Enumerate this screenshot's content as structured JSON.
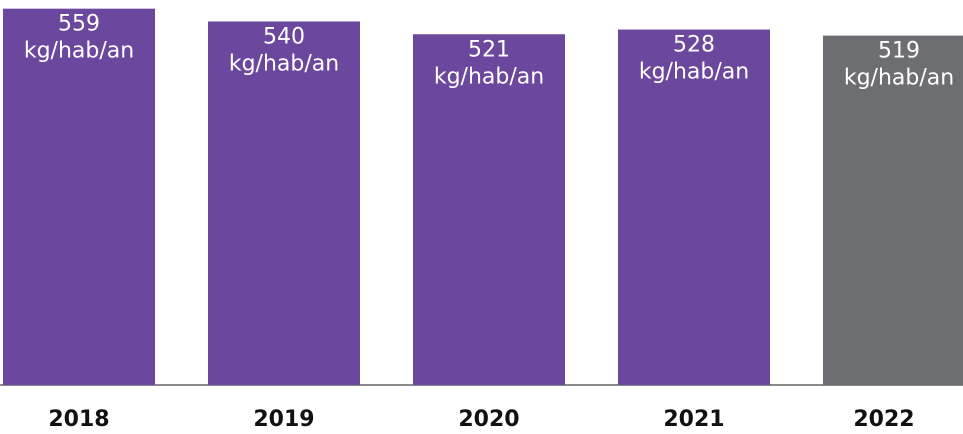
{
  "chart_data": {
    "type": "bar",
    "categories": [
      "2018",
      "2019",
      "2020",
      "2021",
      "2022"
    ],
    "values": [
      559,
      540,
      521,
      528,
      519
    ],
    "value_unit": "kg/hab/an",
    "colors": [
      "#6b479d",
      "#6b479d",
      "#6b479d",
      "#6b479d",
      "#6d6e71"
    ],
    "ylim": [
      0,
      560
    ]
  }
}
